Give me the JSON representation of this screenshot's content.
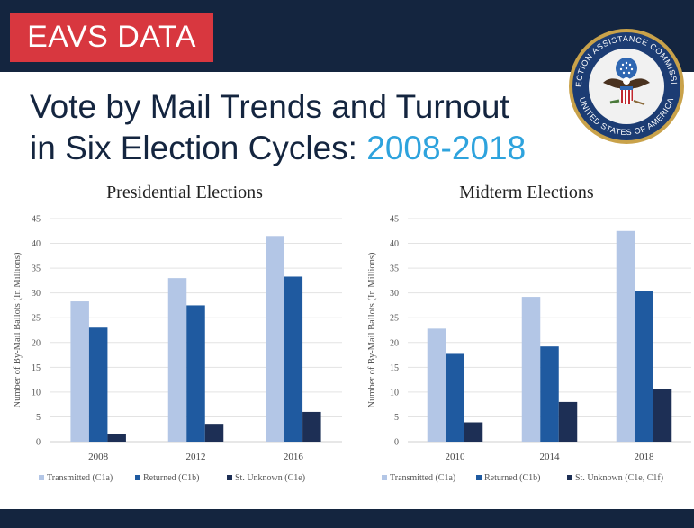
{
  "header": {
    "badge": "EAVS DATA",
    "title_line1": "Vote by Mail Trends and Turnout",
    "title_line2": "in Six Election Cycles: ",
    "title_accent": "2008-2018"
  },
  "seal": {
    "icon": "election-assistance-commission-seal-icon",
    "text_top": "ELECTION ASSISTANCE COMMISSION",
    "text_bottom": "UNITED STATES OF AMERICA"
  },
  "colors": {
    "navy": "#14253f",
    "red": "#d8373f",
    "accent_blue": "#2ea3dd",
    "transmitted": "#b3c6e6",
    "returned": "#1f5aa0",
    "unknown": "#1d2f55"
  },
  "chart_data": [
    {
      "type": "bar",
      "title": "Presidential Elections",
      "ylabel": "Number of By-Mail Ballots (In Millions)",
      "xlabel": "",
      "ylim": [
        0,
        45
      ],
      "yticks": [
        0,
        5,
        10,
        15,
        20,
        25,
        30,
        35,
        40,
        45
      ],
      "grid": true,
      "legend_position": "bottom",
      "categories": [
        "2008",
        "2012",
        "2016"
      ],
      "series": [
        {
          "name": "Transmitted (C1a)",
          "values": [
            28.3,
            33.0,
            41.5
          ]
        },
        {
          "name": "Returned (C1b)",
          "values": [
            23.0,
            27.5,
            33.3
          ]
        },
        {
          "name": "St. Unknown (C1e)",
          "values": [
            1.5,
            3.6,
            6.0
          ]
        }
      ]
    },
    {
      "type": "bar",
      "title": "Midterm Elections",
      "ylabel": "Number of By-Mail Ballots (In Millions)",
      "xlabel": "",
      "ylim": [
        0,
        45
      ],
      "yticks": [
        0,
        5,
        10,
        15,
        20,
        25,
        30,
        35,
        40,
        45
      ],
      "grid": true,
      "legend_position": "bottom",
      "categories": [
        "2010",
        "2014",
        "2018"
      ],
      "series": [
        {
          "name": "Transmitted (C1a)",
          "values": [
            22.8,
            29.2,
            42.5
          ]
        },
        {
          "name": "Returned (C1b)",
          "values": [
            17.7,
            19.2,
            30.4
          ]
        },
        {
          "name": "St. Unknown (C1e, C1f)",
          "values": [
            3.9,
            8.0,
            10.6
          ]
        }
      ]
    }
  ]
}
